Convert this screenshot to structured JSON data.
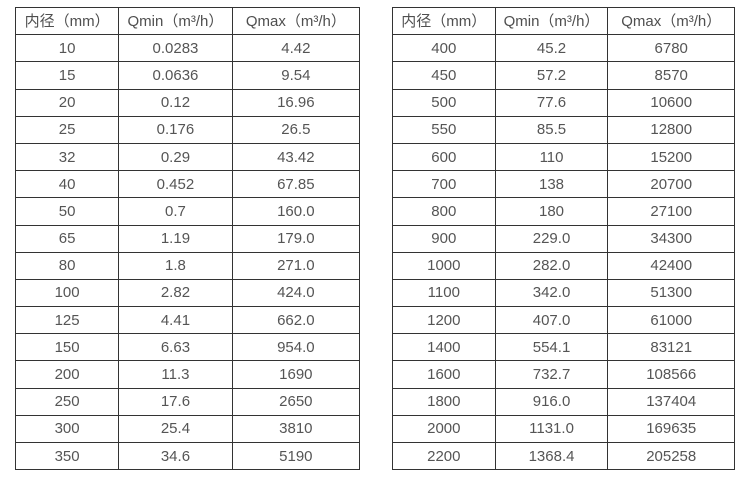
{
  "colors": {
    "background": "#ffffff",
    "table_border": "#333333",
    "cell_text": "#555555"
  },
  "chart_data": [
    {
      "type": "table",
      "columns": [
        "内径（mm）",
        "Qmin（m³/h）",
        "Qmax（m³/h）"
      ],
      "rows": [
        [
          "10",
          "0.0283",
          "4.42"
        ],
        [
          "15",
          "0.0636",
          "9.54"
        ],
        [
          "20",
          "0.12",
          "16.96"
        ],
        [
          "25",
          "0.176",
          "26.5"
        ],
        [
          "32",
          "0.29",
          "43.42"
        ],
        [
          "40",
          "0.452",
          "67.85"
        ],
        [
          "50",
          "0.7",
          "160.0"
        ],
        [
          "65",
          "1.19",
          "179.0"
        ],
        [
          "80",
          "1.8",
          "271.0"
        ],
        [
          "100",
          "2.82",
          "424.0"
        ],
        [
          "125",
          "4.41",
          "662.0"
        ],
        [
          "150",
          "6.63",
          "954.0"
        ],
        [
          "200",
          "11.3",
          "1690"
        ],
        [
          "250",
          "17.6",
          "2650"
        ],
        [
          "300",
          "25.4",
          "3810"
        ],
        [
          "350",
          "34.6",
          "5190"
        ]
      ]
    },
    {
      "type": "table",
      "columns": [
        "内径（mm）",
        "Qmin（m³/h）",
        "Qmax（m³/h）"
      ],
      "rows": [
        [
          "400",
          "45.2",
          "6780"
        ],
        [
          "450",
          "57.2",
          "8570"
        ],
        [
          "500",
          "77.6",
          "10600"
        ],
        [
          "550",
          "85.5",
          "12800"
        ],
        [
          "600",
          "110",
          "15200"
        ],
        [
          "700",
          "138",
          "20700"
        ],
        [
          "800",
          "180",
          "27100"
        ],
        [
          "900",
          "229.0",
          "34300"
        ],
        [
          "1000",
          "282.0",
          "42400"
        ],
        [
          "1100",
          "342.0",
          "51300"
        ],
        [
          "1200",
          "407.0",
          "61000"
        ],
        [
          "1400",
          "554.1",
          "83121"
        ],
        [
          "1600",
          "732.7",
          "108566"
        ],
        [
          "1800",
          "916.0",
          "137404"
        ],
        [
          "2000",
          "1131.0",
          "169635"
        ],
        [
          "2200",
          "1368.4",
          "205258"
        ]
      ]
    }
  ]
}
